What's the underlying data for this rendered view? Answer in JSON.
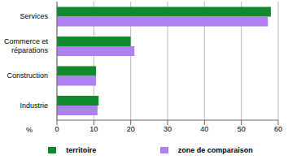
{
  "chart_data": {
    "type": "bar",
    "orientation": "horizontal",
    "x_label": "%",
    "categories": [
      "Services",
      "Commerce et réparations",
      "Construction",
      "Industrie"
    ],
    "series": [
      {
        "name": "territoire",
        "color": "#118a2e",
        "values": [
          58,
          20,
          10.6,
          11.3
        ]
      },
      {
        "name": "zone de comparaison",
        "color": "#b07ff2",
        "values": [
          57.2,
          21,
          10.6,
          11
        ]
      }
    ],
    "xlim": [
      0,
      60
    ],
    "xticks": [
      0,
      10,
      20,
      30,
      40,
      50,
      60
    ],
    "grid": true,
    "legend": "bottom"
  }
}
